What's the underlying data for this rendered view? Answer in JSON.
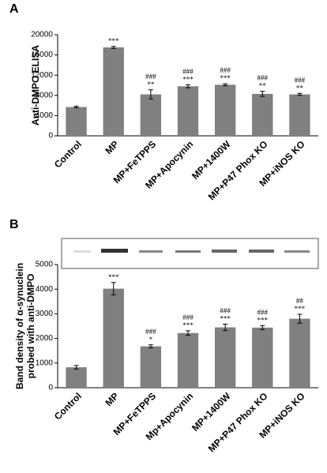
{
  "chart_data": [
    {
      "type": "bar",
      "title": "A",
      "ylabel": [
        "Anti-DMPO ELISA"
      ],
      "categories": [
        "Control",
        "MP",
        "MP+FeTPPS",
        "MP+Apocynin",
        "MP+1400W",
        "MP+P47 Phox KO",
        "MP+iNOS KO"
      ],
      "values": [
        5700,
        17500,
        8200,
        9800,
        10100,
        8300,
        8200
      ],
      "errors": [
        150,
        200,
        900,
        300,
        200,
        500,
        200
      ],
      "annotations": [
        null,
        [
          "***"
        ],
        [
          "###",
          "**"
        ],
        [
          "###",
          "***"
        ],
        [
          "###",
          "***"
        ],
        [
          "###",
          "**"
        ],
        [
          "###",
          "**"
        ]
      ],
      "color": "#808080",
      "ylim": [
        0,
        20000
      ],
      "yticks": [
        0,
        4000,
        8000,
        12000,
        16000,
        20000
      ]
    },
    {
      "type": "bar",
      "title": "B",
      "ylabel": [
        "Band density of α-synuclein",
        "probed with anti-DMPO"
      ],
      "categories": [
        "Control",
        "MP",
        "MP+FeTPPS",
        "Mp+Apocynin",
        "MP+1400W",
        "MP+P47 Phox KO",
        "MP+iNOS KO"
      ],
      "values": [
        830,
        4020,
        1680,
        2220,
        2450,
        2440,
        2800
      ],
      "errors": [
        70,
        250,
        60,
        90,
        130,
        80,
        180
      ],
      "annotations": [
        null,
        [
          "***"
        ],
        [
          "###",
          "*"
        ],
        [
          "###",
          "***"
        ],
        [
          "###",
          "***"
        ],
        [
          "###",
          "***"
        ],
        [
          "##",
          "***"
        ]
      ],
      "color": "#808080",
      "ylim": [
        0,
        5000
      ],
      "yticks": [
        0,
        1000,
        2000,
        3000,
        4000,
        5000
      ]
    }
  ]
}
